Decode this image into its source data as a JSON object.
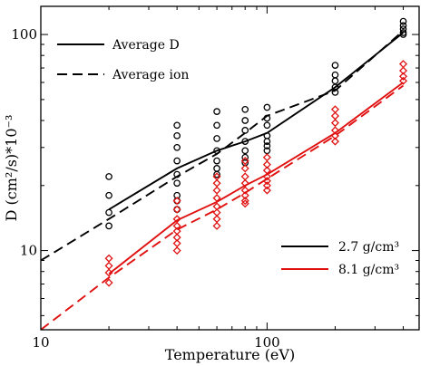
{
  "chart_data": {
    "type": "line",
    "title": "",
    "xlabel": "Temperature (eV)",
    "ylabel": "D (cm²/s)*10⁻³",
    "x_scale": "log",
    "y_scale": "log",
    "xlim": [
      10,
      470
    ],
    "ylim": [
      4.3,
      135
    ],
    "grid": false,
    "x_ticks": [
      {
        "value": 10,
        "label": "10"
      },
      {
        "value": 100,
        "label": "100"
      }
    ],
    "y_ticks": [
      {
        "value": 10,
        "label": "10"
      },
      {
        "value": 100,
        "label": "100"
      }
    ],
    "legend_lines": {
      "position": "top-left",
      "entries": [
        {
          "label": "Average D",
          "dash": "solid"
        },
        {
          "label": "Average ion",
          "dash": "dashed"
        }
      ]
    },
    "legend_colors": {
      "position": "bottom-right",
      "entries": [
        {
          "label": "2.7 g/cm³",
          "color": "#000000"
        },
        {
          "label": "8.1 g/cm³",
          "color": "#e01010"
        }
      ]
    },
    "series": [
      {
        "name": "2.7 g/cm³",
        "kind": "Average D",
        "style": "solid",
        "color": "#000000",
        "x": [
          20,
          40,
          60,
          80,
          100,
          200,
          400
        ],
        "y": [
          15.5,
          24,
          29,
          32,
          35,
          57,
          102
        ]
      },
      {
        "name": "2.7 g/cm³",
        "kind": "Average ion",
        "style": "dashed",
        "color": "#000000",
        "x": [
          10,
          20,
          40,
          60,
          80,
          100,
          200,
          400
        ],
        "y": [
          9,
          14,
          22,
          28,
          35,
          42,
          55,
          104
        ]
      },
      {
        "name": "8.1 g/cm³",
        "kind": "Average D",
        "style": "solid",
        "color": "#e01010",
        "x": [
          20,
          40,
          60,
          80,
          100,
          200,
          400
        ],
        "y": [
          7.8,
          13.8,
          16.8,
          20,
          22.5,
          35,
          60
        ]
      },
      {
        "name": "8.1 g/cm³",
        "kind": "Average ion",
        "style": "dashed",
        "color": "#e01010",
        "x": [
          10,
          20,
          40,
          60,
          80,
          100,
          200,
          400
        ],
        "y": [
          4.3,
          7.5,
          12.5,
          15.5,
          18.5,
          21.5,
          34,
          58
        ]
      }
    ],
    "scatter": [
      {
        "name": "2.7 g/cm³",
        "marker": "circle",
        "color": "#000000",
        "points": [
          [
            20,
            22
          ],
          [
            20,
            18
          ],
          [
            20,
            15
          ],
          [
            20,
            13
          ],
          [
            40,
            38
          ],
          [
            40,
            34
          ],
          [
            40,
            30
          ],
          [
            40,
            26
          ],
          [
            40,
            22.5
          ],
          [
            40,
            20.5
          ],
          [
            40,
            18
          ],
          [
            40,
            17
          ],
          [
            40,
            15.5
          ],
          [
            60,
            44
          ],
          [
            60,
            38
          ],
          [
            60,
            33
          ],
          [
            60,
            29
          ],
          [
            60,
            26
          ],
          [
            60,
            24
          ],
          [
            60,
            22.5
          ],
          [
            80,
            45
          ],
          [
            80,
            40
          ],
          [
            80,
            36
          ],
          [
            80,
            32
          ],
          [
            80,
            29
          ],
          [
            80,
            27
          ],
          [
            80,
            25.5
          ],
          [
            100,
            46
          ],
          [
            100,
            41
          ],
          [
            100,
            38
          ],
          [
            100,
            34
          ],
          [
            100,
            32
          ],
          [
            100,
            30.5
          ],
          [
            100,
            29
          ],
          [
            200,
            72
          ],
          [
            200,
            65
          ],
          [
            200,
            61
          ],
          [
            200,
            57
          ],
          [
            200,
            54
          ],
          [
            400,
            115
          ],
          [
            400,
            110
          ],
          [
            400,
            106
          ],
          [
            400,
            102
          ],
          [
            400,
            100
          ]
        ]
      },
      {
        "name": "8.1 g/cm³",
        "marker": "diamond",
        "color": "#e01010",
        "points": [
          [
            20,
            9.2
          ],
          [
            20,
            8.5
          ],
          [
            20,
            7.9
          ],
          [
            20,
            7.1
          ],
          [
            40,
            17
          ],
          [
            40,
            15.5
          ],
          [
            40,
            14
          ],
          [
            40,
            13
          ],
          [
            40,
            12.3
          ],
          [
            40,
            11.5
          ],
          [
            40,
            10.8
          ],
          [
            40,
            10
          ],
          [
            60,
            22
          ],
          [
            60,
            20.5
          ],
          [
            60,
            19
          ],
          [
            60,
            17.5
          ],
          [
            60,
            16
          ],
          [
            60,
            15
          ],
          [
            60,
            14
          ],
          [
            60,
            13
          ],
          [
            80,
            26
          ],
          [
            80,
            24
          ],
          [
            80,
            22
          ],
          [
            80,
            20.5
          ],
          [
            80,
            19
          ],
          [
            80,
            18
          ],
          [
            80,
            17
          ],
          [
            80,
            16.5
          ],
          [
            100,
            27
          ],
          [
            100,
            25
          ],
          [
            100,
            23.5
          ],
          [
            100,
            22
          ],
          [
            100,
            21
          ],
          [
            100,
            20
          ],
          [
            100,
            19
          ],
          [
            200,
            45
          ],
          [
            200,
            42
          ],
          [
            200,
            39
          ],
          [
            200,
            36
          ],
          [
            200,
            34
          ],
          [
            200,
            32
          ],
          [
            400,
            73
          ],
          [
            400,
            68
          ],
          [
            400,
            64
          ],
          [
            400,
            61
          ]
        ]
      }
    ]
  }
}
